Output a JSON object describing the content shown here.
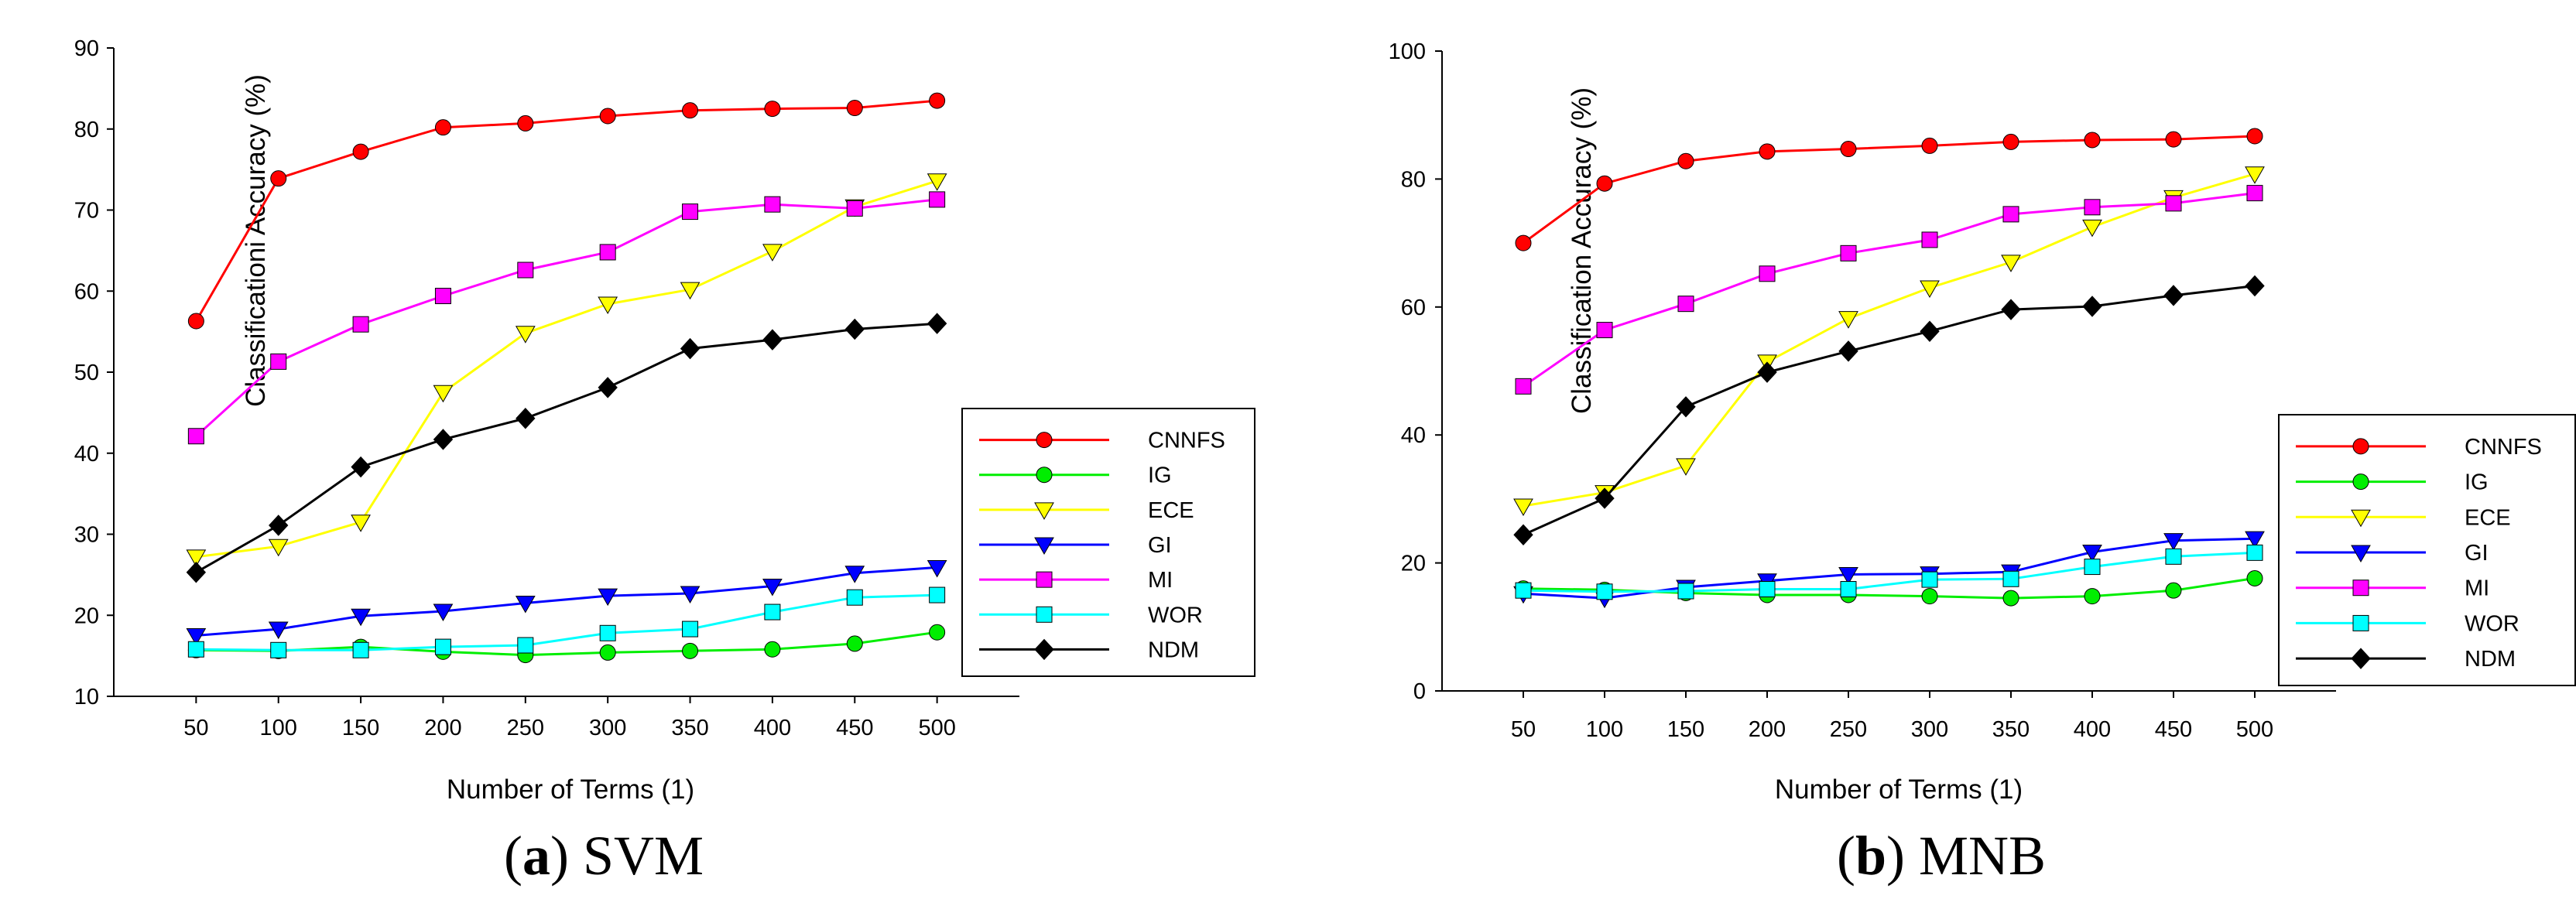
{
  "chart_data": [
    {
      "type": "line",
      "caption_letter": "a",
      "caption_text": "SVM",
      "xlabel": "Number of Terms (1)",
      "ylabel": "Classificationi Accuracy (%)",
      "x": [
        50,
        100,
        150,
        200,
        250,
        300,
        350,
        400,
        450,
        500
      ],
      "xlim": [
        0,
        550
      ],
      "ylim": [
        10,
        90
      ],
      "yticks": [
        10,
        20,
        30,
        40,
        50,
        60,
        70,
        80,
        90
      ],
      "legend_position": "lower-right",
      "series": [
        {
          "name": "CNNFS",
          "color": "#ff0000",
          "marker": "circle",
          "values": [
            56.3,
            73.9,
            77.2,
            80.2,
            80.7,
            81.6,
            82.3,
            82.5,
            82.6,
            83.5
          ]
        },
        {
          "name": "IG",
          "color": "#00ee00",
          "marker": "circle",
          "values": [
            15.7,
            15.6,
            16.1,
            15.5,
            15.1,
            15.4,
            15.6,
            15.8,
            16.5,
            17.9
          ]
        },
        {
          "name": "ECE",
          "color": "#ffff00",
          "marker": "triangle-down",
          "values": [
            27.2,
            28.5,
            31.5,
            47.5,
            54.8,
            58.4,
            60.2,
            64.9,
            70.4,
            73.6
          ]
        },
        {
          "name": "GI",
          "color": "#0000ff",
          "marker": "triangle-down",
          "values": [
            17.5,
            18.3,
            19.9,
            20.5,
            21.5,
            22.4,
            22.7,
            23.6,
            25.2,
            25.9
          ]
        },
        {
          "name": "MI",
          "color": "#ff00ff",
          "marker": "square",
          "values": [
            42.1,
            51.3,
            55.9,
            59.4,
            62.6,
            64.8,
            69.8,
            70.7,
            70.2,
            71.3
          ]
        },
        {
          "name": "WOR",
          "color": "#00ffff",
          "marker": "square",
          "values": [
            15.8,
            15.7,
            15.7,
            16.1,
            16.3,
            17.8,
            18.3,
            20.4,
            22.2,
            22.5
          ]
        },
        {
          "name": "NDM",
          "color": "#000000",
          "marker": "diamond",
          "values": [
            25.3,
            31.1,
            38.3,
            41.7,
            44.3,
            48.1,
            52.9,
            54.0,
            55.3,
            56.0
          ]
        }
      ]
    },
    {
      "type": "line",
      "caption_letter": "b",
      "caption_text": "MNB",
      "xlabel": "Number of Terms (1)",
      "ylabel": "Classification Accuracy (%)",
      "x": [
        50,
        100,
        150,
        200,
        250,
        300,
        350,
        400,
        450,
        500
      ],
      "xlim": [
        0,
        550
      ],
      "ylim": [
        0,
        100
      ],
      "yticks": [
        0,
        20,
        40,
        60,
        80,
        100
      ],
      "legend_position": "lower-right",
      "series": [
        {
          "name": "CNNFS",
          "color": "#ff0000",
          "marker": "circle",
          "values": [
            70.0,
            79.3,
            82.8,
            84.3,
            84.7,
            85.2,
            85.8,
            86.1,
            86.2,
            86.7
          ]
        },
        {
          "name": "IG",
          "color": "#00ee00",
          "marker": "circle",
          "values": [
            16.0,
            15.8,
            15.3,
            15.0,
            15.0,
            14.8,
            14.5,
            14.8,
            15.7,
            17.6
          ]
        },
        {
          "name": "ECE",
          "color": "#ffff00",
          "marker": "triangle-down",
          "values": [
            28.9,
            31.0,
            35.2,
            51.4,
            58.2,
            63.0,
            67.0,
            72.5,
            77.1,
            80.8
          ]
        },
        {
          "name": "GI",
          "color": "#0000ff",
          "marker": "triangle-down",
          "values": [
            15.2,
            14.5,
            16.2,
            17.2,
            18.2,
            18.3,
            18.6,
            21.7,
            23.5,
            23.8
          ]
        },
        {
          "name": "MI",
          "color": "#ff00ff",
          "marker": "square",
          "values": [
            47.6,
            56.4,
            60.5,
            65.2,
            68.4,
            70.5,
            74.5,
            75.6,
            76.2,
            77.8
          ]
        },
        {
          "name": "WOR",
          "color": "#00ffff",
          "marker": "square",
          "values": [
            15.7,
            15.5,
            15.6,
            15.9,
            15.9,
            17.4,
            17.5,
            19.4,
            21.0,
            21.6
          ]
        },
        {
          "name": "NDM",
          "color": "#000000",
          "marker": "diamond",
          "values": [
            24.4,
            30.1,
            44.4,
            49.8,
            53.1,
            56.2,
            59.6,
            60.1,
            61.8,
            63.3
          ]
        }
      ]
    }
  ]
}
